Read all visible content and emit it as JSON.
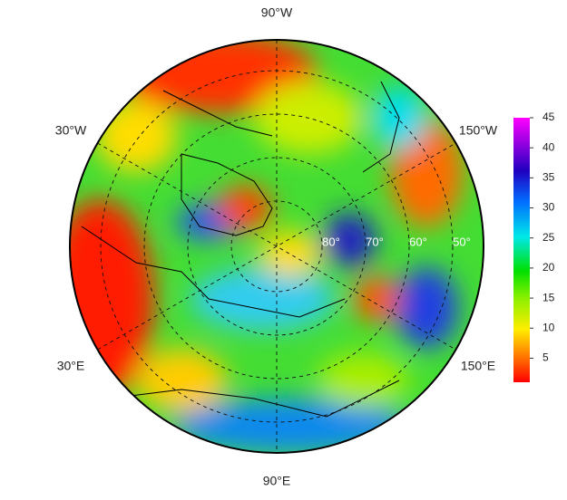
{
  "map": {
    "longitude_labels": {
      "top": "90°W",
      "upper_left": "30°W",
      "upper_right": "150°W",
      "lower_left": "30°E",
      "lower_right": "150°E",
      "bottom": "90°E"
    },
    "latitude_labels": [
      "80°",
      "70°",
      "60°",
      "50°"
    ],
    "colorbar": {
      "lim": [
        1,
        45
      ],
      "ticks": [
        5,
        10,
        15,
        20,
        25,
        30,
        35,
        40,
        45
      ]
    }
  }
}
